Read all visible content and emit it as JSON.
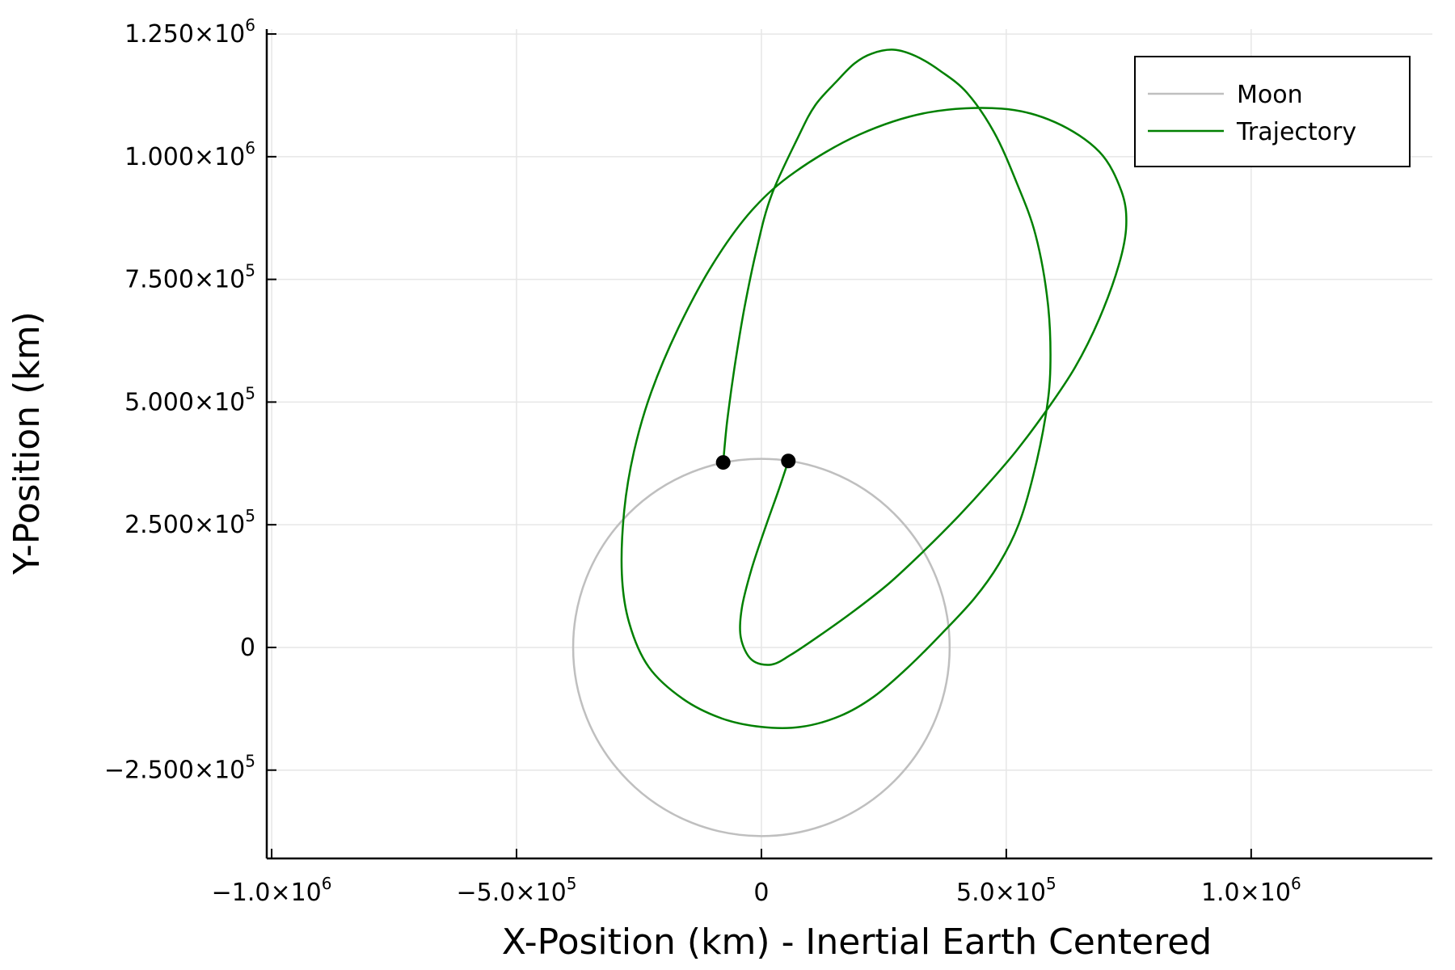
{
  "chart_data": {
    "type": "line",
    "xlabel": "X-Position (km) - Inertial Earth Centered",
    "ylabel": "Y-Position (km)",
    "xlim": [
      -1010000,
      1370000
    ],
    "ylim": [
      -430000,
      1260000
    ],
    "grid": true,
    "legend_position": "top-right",
    "x_ticks": [
      {
        "value": -1000000,
        "mantissa": "−1.0×10",
        "exp": "6"
      },
      {
        "value": -500000,
        "mantissa": "−5.0×10",
        "exp": "5"
      },
      {
        "value": 0,
        "mantissa": "0",
        "exp": ""
      },
      {
        "value": 500000,
        "mantissa": "5.0×10",
        "exp": "5"
      },
      {
        "value": 1000000,
        "mantissa": "1.0×10",
        "exp": "6"
      }
    ],
    "y_ticks": [
      {
        "value": -250000,
        "mantissa": "−2.500×10",
        "exp": "5"
      },
      {
        "value": 0,
        "mantissa": "0",
        "exp": ""
      },
      {
        "value": 250000,
        "mantissa": "2.500×10",
        "exp": "5"
      },
      {
        "value": 500000,
        "mantissa": "5.000×10",
        "exp": "5"
      },
      {
        "value": 750000,
        "mantissa": "7.500×10",
        "exp": "5"
      },
      {
        "value": 1000000,
        "mantissa": "1.000×10",
        "exp": "6"
      },
      {
        "value": 1250000,
        "mantissa": "1.250×10",
        "exp": "6"
      }
    ],
    "series": [
      {
        "name": "Moon",
        "color": "#bfbfbf",
        "shape": "circle",
        "center": [
          0,
          0
        ],
        "radius": 384400
      },
      {
        "name": "Trajectory",
        "color": "#008000",
        "points": [
          [
            -78000,
            377000
          ],
          [
            -70000,
            460000
          ],
          [
            -55000,
            570000
          ],
          [
            -35000,
            690000
          ],
          [
            -10000,
            810000
          ],
          [
            20000,
            920000
          ],
          [
            75000,
            1040000
          ],
          [
            110000,
            1105000
          ],
          [
            155000,
            1155000
          ],
          [
            190000,
            1190000
          ],
          [
            225000,
            1210000
          ],
          [
            270000,
            1218000
          ],
          [
            315000,
            1205000
          ],
          [
            365000,
            1175000
          ],
          [
            420000,
            1130000
          ],
          [
            475000,
            1050000
          ],
          [
            520000,
            950000
          ],
          [
            560000,
            840000
          ],
          [
            585000,
            700000
          ],
          [
            590000,
            570000
          ],
          [
            580000,
            470000
          ],
          [
            555000,
            350000
          ],
          [
            525000,
            250000
          ],
          [
            485000,
            170000
          ],
          [
            435000,
            100000
          ],
          [
            370000,
            30000
          ],
          [
            300000,
            -40000
          ],
          [
            230000,
            -100000
          ],
          [
            160000,
            -140000
          ],
          [
            80000,
            -162000
          ],
          [
            0,
            -162000
          ],
          [
            -80000,
            -145000
          ],
          [
            -160000,
            -105000
          ],
          [
            -230000,
            -40000
          ],
          [
            -270000,
            50000
          ],
          [
            -285000,
            150000
          ],
          [
            -280000,
            280000
          ],
          [
            -260000,
            400000
          ],
          [
            -225000,
            520000
          ],
          [
            -170000,
            650000
          ],
          [
            -100000,
            780000
          ],
          [
            -20000,
            890000
          ],
          [
            70000,
            970000
          ],
          [
            200000,
            1045000
          ],
          [
            340000,
            1090000
          ],
          [
            490000,
            1098000
          ],
          [
            600000,
            1070000
          ],
          [
            690000,
            1010000
          ],
          [
            735000,
            930000
          ],
          [
            745000,
            860000
          ],
          [
            730000,
            780000
          ],
          [
            690000,
            670000
          ],
          [
            640000,
            570000
          ],
          [
            580000,
            480000
          ],
          [
            520000,
            400000
          ],
          [
            460000,
            330000
          ],
          [
            400000,
            265000
          ],
          [
            330000,
            195000
          ],
          [
            260000,
            130000
          ],
          [
            190000,
            75000
          ],
          [
            120000,
            25000
          ],
          [
            60000,
            -15000
          ],
          [
            20000,
            -35000
          ],
          [
            -20000,
            -25000
          ],
          [
            -42000,
            20000
          ],
          [
            -40000,
            80000
          ],
          [
            -20000,
            160000
          ],
          [
            10000,
            250000
          ],
          [
            35000,
            320000
          ],
          [
            55000,
            380000
          ]
        ]
      }
    ],
    "markers": [
      {
        "x": -78000,
        "y": 377000,
        "color": "#000000"
      },
      {
        "x": 55000,
        "y": 380000,
        "color": "#000000"
      }
    ]
  }
}
